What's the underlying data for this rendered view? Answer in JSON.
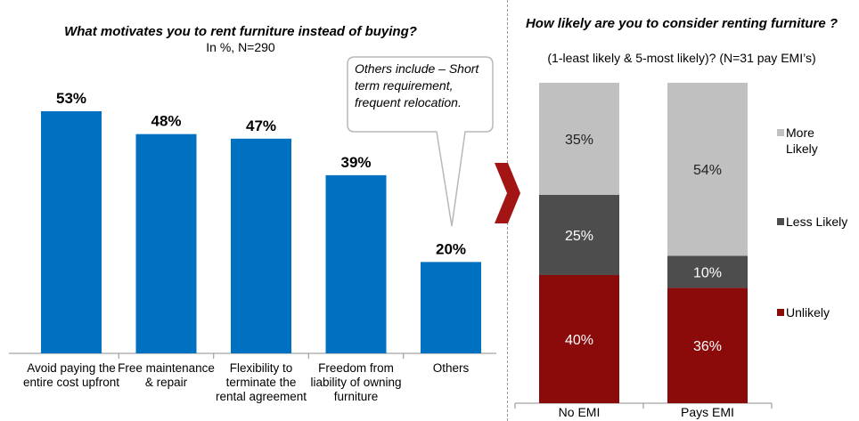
{
  "chart_data": [
    {
      "type": "bar",
      "title": "What motivates  you to rent furniture  instead  of buying?",
      "subtitle": "In %, N=290",
      "categories": [
        "Avoid paying the entire cost upfront",
        "Free maintenance & repair",
        "Flexibility to terminate the rental agreement",
        "Freedom from liability of owning furniture",
        "Others"
      ],
      "values": [
        53,
        48,
        47,
        39,
        20
      ],
      "value_labels": [
        "53%",
        "48%",
        "47%",
        "39%",
        "20%"
      ],
      "ylim": [
        0,
        60
      ],
      "bar_color": "#0070c0",
      "grid": false,
      "annotation": "Others include – Short term requirement, frequent relocation."
    },
    {
      "type": "bar",
      "stacked": true,
      "title": "How likely  are you to consider  renting furniture  ?",
      "subtitle": "(1-least likely & 5-most likely)? (N=31 pay EMI’s)",
      "categories": [
        "No EMI",
        "Pays EMI"
      ],
      "series": [
        {
          "name": "Unlikely",
          "values": [
            40,
            36
          ],
          "labels": [
            "40%",
            "36%"
          ],
          "color": "#8b0a0a"
        },
        {
          "name": "Less Likely",
          "values": [
            25,
            10
          ],
          "labels": [
            "25%",
            "10%"
          ],
          "color": "#4d4d4d"
        },
        {
          "name": "More Likely",
          "values": [
            35,
            54
          ],
          "labels": [
            "35%",
            "54%"
          ],
          "color": "#c0c0c0"
        }
      ],
      "ylim": [
        0,
        100
      ],
      "legend": "right",
      "grid": false
    }
  ],
  "accent_color": "#a31515"
}
